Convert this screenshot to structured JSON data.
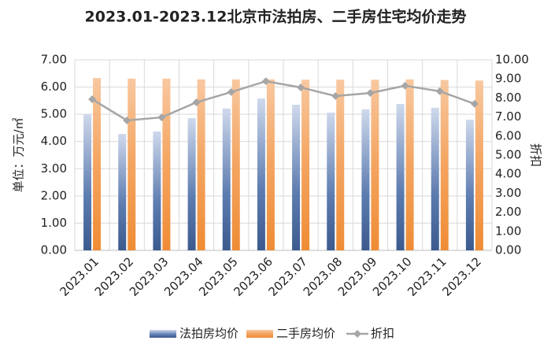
{
  "chart_data": {
    "type": "bar",
    "title": "2023.01-2023.12北京市法拍房、二手房住宅均价走势",
    "y_label": "单位：万元/㎡",
    "y2_label": "折扣",
    "categories": [
      "2023.01",
      "2023.02",
      "2023.03",
      "2023.04",
      "2023.05",
      "2023.06",
      "2023.07",
      "2023.08",
      "2023.09",
      "2023.10",
      "2023.11",
      "2023.12"
    ],
    "series": [
      {
        "name": "法拍房均价",
        "type": "bar",
        "color": "#4a6ba3",
        "values": [
          5.0,
          4.28,
          4.37,
          4.86,
          5.21,
          5.58,
          5.35,
          5.06,
          5.18,
          5.38,
          5.24,
          4.8
        ]
      },
      {
        "name": "二手房均价",
        "type": "bar",
        "color": "#f4a460",
        "values": [
          6.33,
          6.31,
          6.31,
          6.28,
          6.28,
          6.28,
          6.27,
          6.27,
          6.27,
          6.28,
          6.26,
          6.24
        ]
      },
      {
        "name": "折扣",
        "type": "line",
        "axis": "y2",
        "color": "#a6a6a6",
        "values": [
          7.93,
          6.82,
          6.98,
          7.77,
          8.31,
          8.88,
          8.55,
          8.1,
          8.26,
          8.64,
          8.35,
          7.69
        ]
      }
    ],
    "ylim": [
      0,
      7
    ],
    "yticks": [
      {
        "value": 0,
        "label": "0.00"
      },
      {
        "value": 1,
        "label": "1.00"
      },
      {
        "value": 2,
        "label": "2.00"
      },
      {
        "value": 3,
        "label": "3.00"
      },
      {
        "value": 4,
        "label": "4.00"
      },
      {
        "value": 5,
        "label": "5.00"
      },
      {
        "value": 6,
        "label": "6.00"
      },
      {
        "value": 7,
        "label": "7.00"
      }
    ],
    "y2lim": [
      0,
      10
    ],
    "y2ticks": [
      {
        "value": 0,
        "label": "0.00"
      },
      {
        "value": 1,
        "label": "1.00"
      },
      {
        "value": 2,
        "label": "2.00"
      },
      {
        "value": 3,
        "label": "3.00"
      },
      {
        "value": 4,
        "label": "4.00"
      },
      {
        "value": 5,
        "label": "5.00"
      },
      {
        "value": 6,
        "label": "6.00"
      },
      {
        "value": 7,
        "label": "7.00"
      },
      {
        "value": 8,
        "label": "8.00"
      },
      {
        "value": 9,
        "label": "9.00"
      },
      {
        "value": 10,
        "label": "10.00"
      }
    ],
    "grid": true,
    "legend": "bottom"
  }
}
